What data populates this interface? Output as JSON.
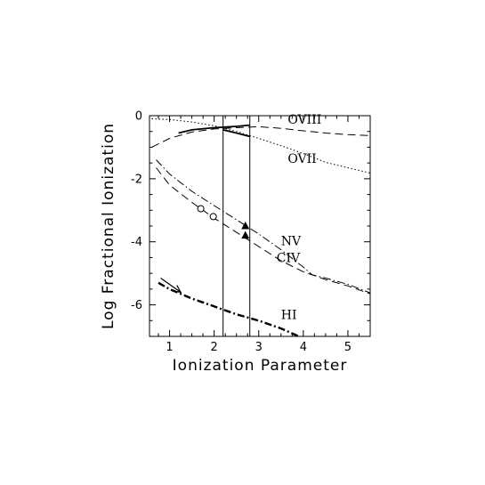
{
  "chart_data": {
    "type": "line",
    "title": "",
    "xlabel": "Ionization Parameter",
    "ylabel": "Log Fractional Ionization",
    "xlim": [
      0.55,
      5.5
    ],
    "ylim": [
      -7.0,
      0.0
    ],
    "xticks": [
      1,
      2,
      3,
      4,
      5
    ],
    "yticks": [
      0,
      -2,
      -4,
      -6
    ],
    "grid": false,
    "vlines": [
      2.2,
      2.8
    ],
    "series": [
      {
        "name": "OVIII",
        "style": "long-dash",
        "x": [
          0.6,
          1.0,
          1.5,
          2.0,
          2.5,
          3.0,
          3.5,
          4.0,
          4.5,
          5.0,
          5.5
        ],
        "y": [
          -1.0,
          -0.72,
          -0.52,
          -0.42,
          -0.38,
          -0.35,
          -0.4,
          -0.48,
          -0.55,
          -0.6,
          -0.63
        ]
      },
      {
        "name": "OVII",
        "style": "dotted",
        "x": [
          0.6,
          1.0,
          1.5,
          2.0,
          2.5,
          3.0,
          3.5,
          4.0,
          4.5,
          5.0,
          5.5
        ],
        "y": [
          -0.1,
          -0.12,
          -0.2,
          -0.32,
          -0.5,
          -0.72,
          -0.95,
          -1.2,
          -1.48,
          -1.65,
          -1.82
        ]
      },
      {
        "name": "NV",
        "style": "dash-dot",
        "x": [
          0.7,
          1.0,
          1.5,
          2.0,
          2.5,
          3.0,
          3.5,
          4.0,
          4.2,
          4.5,
          5.0,
          5.5
        ],
        "y": [
          -1.4,
          -1.85,
          -2.4,
          -2.85,
          -3.3,
          -3.75,
          -4.25,
          -4.8,
          -5.05,
          -5.15,
          -5.35,
          -5.62
        ]
      },
      {
        "name": "CIV",
        "style": "long-dash",
        "x": [
          0.7,
          1.0,
          1.5,
          2.0,
          2.5,
          3.0,
          3.5,
          4.0,
          4.2,
          4.5,
          5.0,
          5.5
        ],
        "y": [
          -1.65,
          -2.2,
          -2.75,
          -3.25,
          -3.7,
          -4.15,
          -4.6,
          -4.95,
          -5.05,
          -5.2,
          -5.4,
          -5.65
        ]
      },
      {
        "name": "HI",
        "style": "dash-dot-bold",
        "x": [
          0.75,
          1.0,
          1.5,
          2.0,
          2.5,
          3.0,
          3.5,
          3.9
        ],
        "y": [
          -5.3,
          -5.5,
          -5.8,
          -6.05,
          -6.3,
          -6.5,
          -6.75,
          -7.0
        ]
      }
    ],
    "solid_segments": [
      {
        "x": [
          1.2,
          1.5,
          2.0,
          2.5,
          2.8
        ],
        "y": [
          -0.55,
          -0.45,
          -0.38,
          -0.34,
          -0.3
        ]
      },
      {
        "x": [
          2.2,
          2.5,
          2.8
        ],
        "y": [
          -0.45,
          -0.55,
          -0.66
        ]
      }
    ],
    "markers": [
      {
        "symbol": "circle-open",
        "x": 1.7,
        "y": -2.95
      },
      {
        "symbol": "circle-open",
        "x": 1.98,
        "y": -3.2
      },
      {
        "symbol": "triangle-filled",
        "x": 2.7,
        "y": -3.5
      },
      {
        "symbol": "triangle-filled",
        "x": 2.7,
        "y": -3.8
      }
    ],
    "arrow": {
      "from": [
        0.8,
        -5.15
      ],
      "to": [
        1.25,
        -5.6
      ]
    },
    "series_labels": [
      {
        "text": "OVIII",
        "x": 3.65,
        "y": -0.25
      },
      {
        "text": "OVII",
        "x": 3.65,
        "y": -1.5
      },
      {
        "text": "NV",
        "x": 3.5,
        "y": -4.1
      },
      {
        "text": "CIV",
        "x": 3.4,
        "y": -4.65
      },
      {
        "text": "HI",
        "x": 3.5,
        "y": -6.45
      }
    ]
  }
}
